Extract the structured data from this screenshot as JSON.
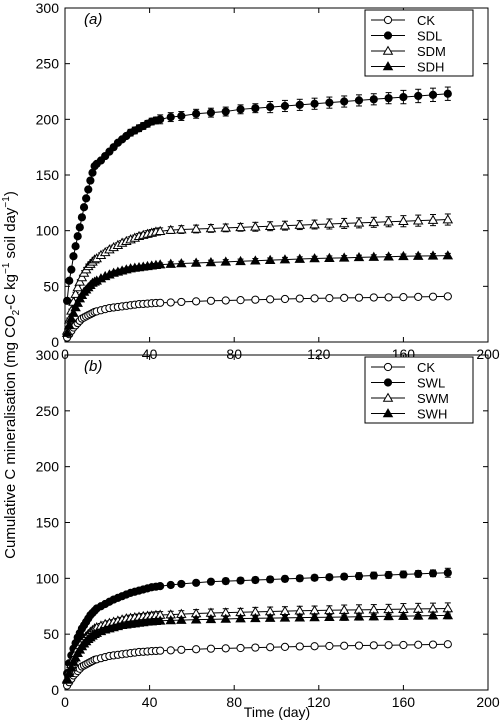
{
  "figure": {
    "ylabel_main": "Cumulative C mineralisation (mg CO",
    "ylabel_sub1": "2",
    "ylabel_mid": "-C kg",
    "ylabel_sup": "−1",
    "ylabel_mid2": " soil day",
    "ylabel_sup2": "−1",
    "ylabel_end": ")",
    "xlabel": "Time (day)"
  },
  "chart_data": [
    {
      "type": "line",
      "panel_label": "(a)",
      "xlim": [
        0,
        200
      ],
      "ylim": [
        0,
        300
      ],
      "x_ticks": [
        "0",
        "40",
        "80",
        "120",
        "160",
        "200"
      ],
      "y_ticks": [
        "0",
        "50",
        "100",
        "150",
        "200",
        "250",
        "300"
      ],
      "legend_position": "top-right",
      "grid": false,
      "x": [
        1,
        2,
        3,
        4,
        5,
        6,
        7,
        8,
        9,
        10,
        11,
        12,
        13,
        14,
        15,
        17,
        19,
        21,
        23,
        25,
        27,
        29,
        31,
        33,
        35,
        37,
        39,
        41,
        43,
        45,
        50,
        55,
        62,
        69,
        76,
        83,
        90,
        97,
        104,
        111,
        118,
        125,
        132,
        139,
        146,
        153,
        160,
        167,
        174,
        181
      ],
      "series": [
        {
          "name": "CK",
          "marker": "circle-open",
          "values": [
            4,
            7,
            10,
            13,
            15,
            17,
            19,
            21,
            22,
            23,
            24,
            25,
            26,
            27,
            27.5,
            28.5,
            29.5,
            30.5,
            31,
            31.5,
            32,
            32.5,
            33,
            33.5,
            34,
            34.2,
            34.5,
            34.8,
            35,
            35.2,
            35.5,
            36,
            36.5,
            37,
            37.3,
            37.6,
            38,
            38.3,
            38.6,
            39,
            39.2,
            39.4,
            39.6,
            39.8,
            40,
            40.1,
            40.3,
            40.5,
            40.7,
            41
          ],
          "errors": [
            1,
            1,
            1,
            1,
            1,
            1,
            1,
            1,
            1,
            1,
            1,
            1,
            1,
            1,
            1,
            1,
            1,
            1,
            1,
            1,
            1,
            1,
            1,
            1,
            1,
            1,
            1,
            1,
            1,
            1,
            1.5,
            1.5,
            1.5,
            1.5,
            1.5,
            1.5,
            1.5,
            1.5,
            1.5,
            1.5,
            1.5,
            1.5,
            2,
            2,
            2,
            2,
            2,
            2,
            2,
            2
          ]
        },
        {
          "name": "SDL",
          "marker": "circle-filled",
          "values": [
            37,
            55,
            65,
            77,
            86,
            95,
            103,
            112,
            121,
            129,
            137,
            145,
            152,
            158,
            160,
            163,
            167,
            171,
            175,
            179,
            182,
            185,
            188,
            190,
            192,
            194,
            196,
            198,
            199,
            200,
            202,
            203,
            205,
            206,
            207,
            209,
            210,
            211,
            212,
            213,
            214,
            215,
            216,
            217,
            218,
            219,
            220,
            221,
            222,
            223
          ],
          "errors": [
            2,
            2,
            2,
            2,
            2,
            2,
            2,
            2,
            2,
            2,
            2,
            2,
            2,
            2,
            2,
            2,
            2,
            2,
            2,
            2,
            2,
            2,
            3,
            3,
            3,
            3,
            3,
            3,
            3,
            4,
            4,
            4,
            4,
            4,
            4,
            4,
            4,
            5,
            5,
            5,
            5,
            5,
            5,
            5,
            5,
            5,
            6,
            6,
            6,
            6
          ]
        },
        {
          "name": "SDM",
          "marker": "triangle-open",
          "values": [
            10,
            20,
            28,
            36,
            43,
            49,
            54,
            58,
            62,
            65,
            68,
            70,
            72,
            74,
            75,
            78,
            80.5,
            83,
            85,
            87,
            89,
            90.5,
            92,
            93.5,
            95,
            96,
            97,
            98,
            99,
            99.5,
            100.5,
            101,
            101.5,
            102,
            102.5,
            103,
            103.5,
            104,
            104.5,
            105,
            105.5,
            106,
            106.5,
            107,
            107.5,
            108,
            108.5,
            109,
            109.5,
            110
          ],
          "errors": [
            1.5,
            1.5,
            1.5,
            1.5,
            1.5,
            1.5,
            2,
            2,
            2,
            2,
            2,
            2,
            2,
            2,
            2,
            2,
            2,
            2,
            2,
            2,
            2,
            2,
            2.5,
            2.5,
            2.5,
            2.5,
            3,
            3,
            3,
            3,
            3,
            3.5,
            3.5,
            3.5,
            3.5,
            3.5,
            4,
            4,
            4,
            4,
            4,
            4.5,
            4.5,
            4.5,
            4.5,
            4.5,
            5,
            5,
            5,
            5
          ]
        },
        {
          "name": "SDH",
          "marker": "triangle-filled",
          "values": [
            8,
            15,
            21,
            26,
            31,
            35,
            39,
            42,
            45,
            47,
            49,
            51,
            53,
            54,
            55,
            57,
            59,
            60.5,
            62,
            63,
            64,
            65,
            66,
            66.5,
            67,
            67.5,
            68,
            68.5,
            69,
            69.5,
            70,
            70.5,
            71,
            71.5,
            72,
            72.5,
            73,
            73.5,
            74,
            74.5,
            75,
            75.3,
            75.6,
            76,
            76.3,
            76.6,
            77,
            77.2,
            77.4,
            77.6
          ],
          "errors": [
            1,
            1,
            1,
            1,
            1,
            1,
            1,
            1,
            1,
            1,
            1,
            1,
            1,
            1,
            1,
            1,
            1,
            1,
            1.5,
            1.5,
            1.5,
            1.5,
            1.5,
            1.5,
            1.5,
            1.5,
            1.5,
            1.5,
            1.5,
            1.5,
            2,
            2,
            2,
            2,
            2,
            2,
            2,
            2,
            2,
            2,
            2,
            2,
            2,
            2,
            2,
            2,
            2,
            2,
            2,
            2
          ]
        }
      ]
    },
    {
      "type": "line",
      "panel_label": "(b)",
      "xlim": [
        0,
        200
      ],
      "ylim": [
        0,
        300
      ],
      "x_ticks": [
        "0",
        "40",
        "80",
        "120",
        "160",
        "200"
      ],
      "y_ticks": [
        "0",
        "50",
        "100",
        "150",
        "200",
        "250",
        "300"
      ],
      "legend_position": "top-right",
      "grid": false,
      "x": [
        1,
        2,
        3,
        4,
        5,
        6,
        7,
        8,
        9,
        10,
        11,
        12,
        13,
        14,
        15,
        17,
        19,
        21,
        23,
        25,
        27,
        29,
        31,
        33,
        35,
        37,
        39,
        41,
        43,
        45,
        50,
        55,
        62,
        69,
        76,
        83,
        90,
        97,
        104,
        111,
        118,
        125,
        132,
        139,
        146,
        153,
        160,
        167,
        174,
        181
      ],
      "series": [
        {
          "name": "CK",
          "marker": "circle-open",
          "values": [
            4,
            7,
            10,
            13,
            15,
            17,
            19,
            21,
            22,
            23,
            24,
            25,
            26,
            27,
            27.5,
            28.5,
            29.5,
            30.5,
            31,
            31.5,
            32,
            32.5,
            33,
            33.5,
            34,
            34.2,
            34.5,
            34.8,
            35,
            35.2,
            35.5,
            36,
            36.5,
            37,
            37.3,
            37.6,
            38,
            38.3,
            38.6,
            39,
            39.2,
            39.4,
            39.6,
            39.8,
            40,
            40.1,
            40.3,
            40.5,
            40.7,
            41
          ],
          "errors": [
            1,
            1,
            1,
            1,
            1,
            1,
            1,
            1,
            1,
            1,
            1,
            1,
            1,
            1,
            1,
            1,
            1,
            1,
            1,
            1,
            1,
            1,
            1,
            1,
            1,
            1,
            1,
            1,
            1,
            1,
            1,
            1,
            1,
            1,
            1,
            1,
            1,
            1,
            1,
            1,
            1,
            1,
            1,
            1,
            1,
            1,
            1,
            1,
            1,
            1
          ]
        },
        {
          "name": "SWL",
          "marker": "circle-filled",
          "values": [
            15,
            24,
            31,
            37,
            42,
            47,
            51,
            55,
            58,
            61,
            64,
            67,
            69,
            71,
            73,
            75,
            77,
            79,
            81,
            82.5,
            84,
            85.5,
            87,
            88,
            89,
            90,
            91,
            92,
            92.5,
            93,
            94,
            95,
            96,
            97,
            97.5,
            98,
            98.5,
            99,
            99.5,
            100,
            100.5,
            101,
            101.5,
            102,
            102.5,
            103,
            103.5,
            104,
            104.5,
            105
          ],
          "errors": [
            1.5,
            1.5,
            1.5,
            1.5,
            1.5,
            1.5,
            1.5,
            1.5,
            1.5,
            1.5,
            1.5,
            1.5,
            1.5,
            1.5,
            1.5,
            1.5,
            1.5,
            1.5,
            2,
            2,
            2,
            2,
            2,
            2,
            2,
            2,
            2,
            2,
            2,
            2,
            2,
            2,
            2,
            2,
            2.5,
            2.5,
            2.5,
            2.5,
            2.5,
            2.5,
            2.5,
            2.5,
            2.5,
            3,
            3,
            3,
            3,
            3,
            3,
            4
          ]
        },
        {
          "name": "SWM",
          "marker": "triangle-open",
          "values": [
            10,
            17,
            23,
            28,
            33,
            37,
            40,
            43,
            46,
            48,
            50,
            52,
            53.5,
            55,
            56,
            57.5,
            59,
            60,
            61,
            62,
            63,
            64,
            64.5,
            65,
            65.5,
            66,
            66.3,
            66.6,
            67,
            67.2,
            67.5,
            68,
            68.5,
            69,
            69.3,
            69.6,
            70,
            70.3,
            70.6,
            71,
            71.2,
            71.4,
            71.6,
            71.8,
            72,
            72.2,
            72.4,
            72.6,
            72.8,
            73
          ],
          "errors": [
            1.5,
            1.5,
            1.5,
            1.5,
            1.5,
            1.5,
            1.5,
            1.5,
            1.5,
            1.5,
            1.5,
            1.5,
            1.5,
            1.5,
            1.5,
            2,
            2,
            2,
            2,
            2,
            2,
            2,
            2.5,
            2.5,
            2.5,
            2.5,
            2.5,
            3,
            3,
            3,
            3,
            3,
            3.5,
            3.5,
            3.5,
            3.5,
            4,
            4,
            4,
            4,
            4,
            4,
            4.5,
            4.5,
            4.5,
            4.5,
            5,
            5,
            5,
            5
          ]
        },
        {
          "name": "SWH",
          "marker": "triangle-filled",
          "values": [
            9,
            15,
            20,
            25,
            29,
            33,
            36,
            39,
            41.5,
            43.5,
            45.5,
            47,
            48.5,
            50,
            51,
            52.5,
            54,
            55,
            56,
            57,
            58,
            58.5,
            59,
            59.5,
            60,
            60.5,
            61,
            61.3,
            61.6,
            62,
            62.3,
            62.6,
            63,
            63.3,
            63.6,
            64,
            64.2,
            64.4,
            64.6,
            64.8,
            65,
            65.2,
            65.4,
            65.6,
            65.8,
            66,
            66.2,
            66.4,
            66.6,
            66.8
          ],
          "errors": [
            1,
            1,
            1,
            1,
            1,
            1,
            1,
            1,
            1,
            1,
            1,
            1,
            1,
            1,
            1,
            1.5,
            1.5,
            1.5,
            1.5,
            1.5,
            1.5,
            1.5,
            1.5,
            1.5,
            1.5,
            2,
            2,
            2,
            2,
            2,
            2,
            2,
            2,
            2,
            2.5,
            2.5,
            2.5,
            2.5,
            2.5,
            2.5,
            2.5,
            2.5,
            3,
            3,
            3,
            3,
            3,
            3,
            3,
            3
          ]
        }
      ]
    }
  ]
}
